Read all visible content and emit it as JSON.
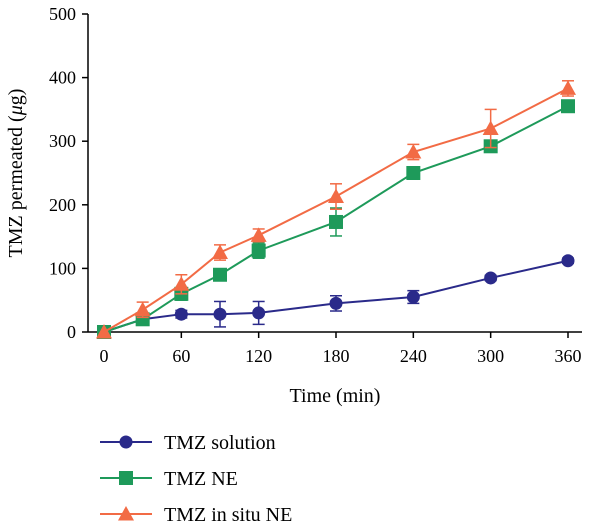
{
  "chart_data": {
    "type": "line",
    "title": "",
    "xlabel": "Time (min)",
    "ylabel_prefix": "TMZ permeated (",
    "ylabel_unit": "μ",
    "ylabel_suffix": "g)",
    "xlim": [
      0,
      360
    ],
    "ylim": [
      0,
      500
    ],
    "x_ticks": [
      "0",
      "60",
      "120",
      "180",
      "240",
      "300",
      "360"
    ],
    "y_ticks": [
      "0",
      "100",
      "200",
      "300",
      "400",
      "500"
    ],
    "grid": false,
    "legend_position": "bottom-left, below plot",
    "x": [
      0,
      30,
      60,
      90,
      120,
      180,
      240,
      300,
      360
    ],
    "series": [
      {
        "name": "TMZ solution",
        "marker": "circle",
        "color": "#2a2a8a",
        "values": [
          0,
          20,
          28,
          28,
          30,
          45,
          55,
          85,
          112
        ],
        "errors": [
          0,
          5,
          6,
          20,
          18,
          12,
          10,
          4,
          4
        ]
      },
      {
        "name": "TMZ NE",
        "marker": "square",
        "color": "#1e9a5a",
        "values": [
          0,
          20,
          60,
          90,
          128,
          173,
          250,
          292,
          355
        ],
        "errors": [
          0,
          8,
          10,
          8,
          12,
          22,
          5,
          5,
          5
        ]
      },
      {
        "name": "TMZ in situ NE",
        "marker": "triangle",
        "color": "#f26b45",
        "values": [
          0,
          35,
          75,
          125,
          152,
          213,
          283,
          320,
          383
        ],
        "errors": [
          0,
          12,
          15,
          12,
          10,
          20,
          12,
          30,
          12
        ]
      }
    ]
  }
}
